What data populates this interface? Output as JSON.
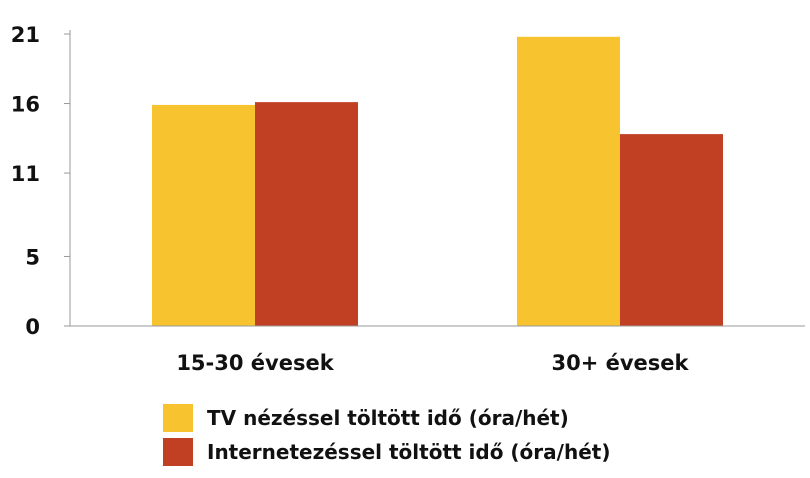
{
  "chart_data": {
    "type": "bar",
    "categories": [
      "15-30 évesek",
      "30+ évesek"
    ],
    "series": [
      {
        "name": "TV nézéssel töltött idő (óra/hét)",
        "values": [
          15.9,
          20.8
        ],
        "color": "#F7C32E"
      },
      {
        "name": "Internetezéssel töltött idő (óra/hét)",
        "values": [
          16.1,
          13.8
        ],
        "color": "#C13F22"
      }
    ],
    "yticks": [
      "0",
      "5",
      "11",
      "16",
      "21"
    ],
    "ylim": [
      0,
      21
    ],
    "grid": false,
    "legend_position": "bottom",
    "title": "",
    "xlabel": "",
    "ylabel": ""
  }
}
